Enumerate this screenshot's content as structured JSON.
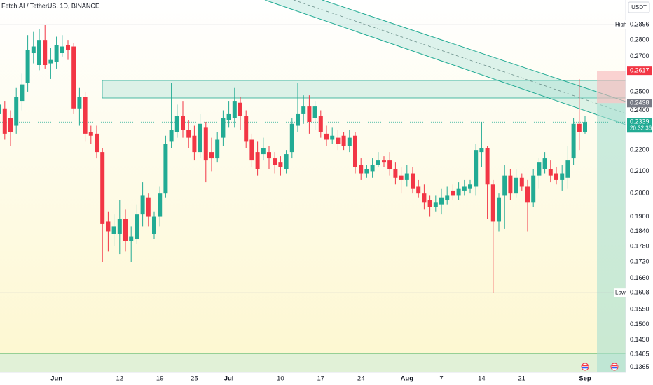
{
  "chart_data": {
    "type": "candlestick",
    "title": "Fetch.AI / TetherUS, 1D, BINANCE",
    "currency": "USDT",
    "categories": [
      null,
      null,
      null,
      null,
      null,
      null,
      null,
      null,
      null,
      null,
      "Jun",
      null,
      null,
      null,
      null,
      null,
      null,
      null,
      null,
      null,
      null,
      "12",
      null,
      null,
      null,
      null,
      null,
      null,
      "19",
      null,
      null,
      null,
      null,
      null,
      "25",
      null,
      null,
      null,
      null,
      null,
      "Jul",
      null,
      null,
      null,
      null,
      null,
      null,
      null,
      null,
      "10",
      null,
      null,
      null,
      null,
      null,
      null,
      "17",
      null,
      null,
      null,
      null,
      null,
      null,
      "24",
      null,
      null,
      null,
      null,
      null,
      null,
      null,
      "Aug",
      null,
      null,
      null,
      null,
      null,
      "7",
      null,
      null,
      null,
      null,
      null,
      null,
      "14",
      null,
      null,
      null,
      null,
      null,
      null,
      "21",
      null,
      null,
      null,
      null,
      null,
      null,
      null,
      null,
      null,
      null,
      "Sep"
    ],
    "open": [
      0.238,
      0.241,
      0.236,
      0.232,
      0.245,
      0.255,
      0.272,
      0.265,
      0.28,
      0.266,
      0.267,
      0.272,
      0.277,
      0.276,
      0.241,
      0.247,
      0.229,
      0.228,
      0.219,
      0.188,
      0.183,
      0.183,
      0.189,
      0.18,
      0.181,
      0.191,
      0.198,
      0.183,
      0.19,
      0.2,
      0.224,
      0.229,
      0.237,
      0.23,
      0.227,
      0.219,
      0.231,
      0.219,
      0.216,
      0.226,
      0.235,
      0.236,
      0.244,
      0.237,
      0.225,
      0.219,
      0.218,
      0.219,
      0.216,
      0.214,
      0.211,
      0.219,
      0.232,
      0.238,
      0.242,
      0.236,
      0.237,
      0.228,
      0.225,
      0.226,
      0.227,
      0.222,
      0.227,
      0.213,
      0.209,
      0.21,
      0.213,
      0.215,
      0.215,
      0.211,
      0.208,
      0.206,
      0.209,
      0.203,
      0.2,
      0.197,
      0.194,
      0.195,
      0.197,
      0.201,
      0.199,
      0.201,
      0.202,
      0.203,
      0.219,
      0.221,
      0.204,
      0.188,
      0.199,
      0.208,
      0.2,
      0.207,
      0.203,
      0.196,
      0.208,
      0.211,
      0.211,
      0.209,
      0.206,
      0.207,
      0.216,
      0.233,
      0.229
    ],
    "high": [
      0.247,
      0.245,
      0.24,
      0.252,
      0.26,
      0.283,
      0.285,
      0.287,
      0.2896,
      0.275,
      0.282,
      0.283,
      0.28,
      0.278,
      0.252,
      0.25,
      0.232,
      0.232,
      0.221,
      0.192,
      0.191,
      0.197,
      0.193,
      0.186,
      0.195,
      0.205,
      0.2,
      0.192,
      0.203,
      0.227,
      0.255,
      0.243,
      0.245,
      0.235,
      0.232,
      0.238,
      0.234,
      0.226,
      0.229,
      0.24,
      0.245,
      0.252,
      0.247,
      0.24,
      0.228,
      0.224,
      0.226,
      0.222,
      0.219,
      0.217,
      0.22,
      0.236,
      0.255,
      0.248,
      0.248,
      0.245,
      0.24,
      0.232,
      0.231,
      0.23,
      0.229,
      0.23,
      0.229,
      0.216,
      0.213,
      0.216,
      0.219,
      0.217,
      0.219,
      0.214,
      0.212,
      0.213,
      0.212,
      0.206,
      0.204,
      0.199,
      0.199,
      0.202,
      0.203,
      0.204,
      0.205,
      0.206,
      0.206,
      0.223,
      0.234,
      0.222,
      0.206,
      0.2,
      0.213,
      0.211,
      0.211,
      0.209,
      0.206,
      0.211,
      0.216,
      0.219,
      0.215,
      0.212,
      0.213,
      0.222,
      0.236,
      0.257,
      0.237
    ],
    "low": [
      0.232,
      0.225,
      0.222,
      0.228,
      0.24,
      0.25,
      0.266,
      0.262,
      0.263,
      0.257,
      0.263,
      0.27,
      0.268,
      0.238,
      0.232,
      0.224,
      0.223,
      0.216,
      0.172,
      0.176,
      0.178,
      0.175,
      0.176,
      0.172,
      0.179,
      0.186,
      0.186,
      0.181,
      0.186,
      0.198,
      0.221,
      0.226,
      0.226,
      0.221,
      0.215,
      0.216,
      0.205,
      0.21,
      0.214,
      0.222,
      0.231,
      0.231,
      0.23,
      0.221,
      0.212,
      0.208,
      0.215,
      0.211,
      0.209,
      0.208,
      0.209,
      0.216,
      0.229,
      0.233,
      0.228,
      0.23,
      0.226,
      0.222,
      0.223,
      0.22,
      0.22,
      0.219,
      0.209,
      0.206,
      0.207,
      0.207,
      0.212,
      0.212,
      0.208,
      0.204,
      0.2,
      0.203,
      0.2,
      0.198,
      0.193,
      0.19,
      0.192,
      0.191,
      0.195,
      0.197,
      0.197,
      0.199,
      0.2,
      0.199,
      0.212,
      0.189,
      0.1608,
      0.184,
      0.185,
      0.197,
      0.198,
      0.201,
      0.184,
      0.194,
      0.202,
      0.209,
      0.205,
      0.204,
      0.201,
      0.202,
      0.213,
      0.22,
      0.228
    ],
    "close": [
      0.243,
      0.228,
      0.229,
      0.247,
      0.254,
      0.274,
      0.276,
      0.28,
      0.265,
      0.268,
      0.277,
      0.276,
      0.274,
      0.241,
      0.247,
      0.228,
      0.227,
      0.219,
      0.187,
      0.184,
      0.186,
      0.189,
      0.18,
      0.182,
      0.191,
      0.199,
      0.19,
      0.19,
      0.2,
      0.223,
      0.23,
      0.237,
      0.23,
      0.226,
      0.219,
      0.233,
      0.215,
      0.216,
      0.225,
      0.236,
      0.238,
      0.245,
      0.237,
      0.224,
      0.215,
      0.211,
      0.221,
      0.216,
      0.213,
      0.212,
      0.218,
      0.233,
      0.238,
      0.242,
      0.234,
      0.242,
      0.229,
      0.225,
      0.227,
      0.223,
      0.222,
      0.226,
      0.212,
      0.209,
      0.211,
      0.213,
      0.215,
      0.214,
      0.211,
      0.207,
      0.206,
      0.209,
      0.202,
      0.2,
      0.196,
      0.194,
      0.196,
      0.198,
      0.199,
      0.199,
      0.202,
      0.203,
      0.204,
      0.22,
      0.221,
      0.204,
      0.188,
      0.198,
      0.208,
      0.2,
      0.207,
      0.203,
      0.196,
      0.208,
      0.214,
      0.216,
      0.208,
      0.206,
      0.209,
      0.215,
      0.233,
      0.229,
      0.2339
    ],
    "up_color": "#22ab94",
    "down_color": "#f23645",
    "log_scale": true,
    "ylim": [
      0.135,
      0.3057
    ],
    "yticks": [
      {
        "value": 0.28,
        "label": "0.2800"
      },
      {
        "value": 0.27,
        "label": "0.2700"
      },
      {
        "value": 0.25,
        "label": "0.2500"
      },
      {
        "value": 0.24,
        "label": "0.2400"
      },
      {
        "value": 0.22,
        "label": "0.2200"
      },
      {
        "value": 0.21,
        "label": "0.2100"
      },
      {
        "value": 0.2,
        "label": "0.2000"
      },
      {
        "value": 0.19,
        "label": "0.1900"
      },
      {
        "value": 0.184,
        "label": "0.1840"
      },
      {
        "value": 0.178,
        "label": "0.1780"
      },
      {
        "value": 0.172,
        "label": "0.1720"
      },
      {
        "value": 0.166,
        "label": "0.1660"
      },
      {
        "value": 0.155,
        "label": "0.1550"
      },
      {
        "value": 0.15,
        "label": "0.1500"
      },
      {
        "value": 0.145,
        "label": "0.1450"
      },
      {
        "value": 0.1405,
        "label": "0.1405"
      },
      {
        "value": 0.1365,
        "label": "0.1365"
      }
    ],
    "high_marker": {
      "text": "High",
      "value": 0.2896,
      "label": "0.2896"
    },
    "low_marker": {
      "text": "Low",
      "value": 0.1608,
      "label": "0.1608"
    },
    "last_price": {
      "value": 0.2339,
      "label": "0.2339",
      "countdown": "20:32:36",
      "color": "#22ab94"
    },
    "position": {
      "stop": {
        "value": 0.2617,
        "label": "0.2617",
        "color": "#f23645"
      },
      "entry": {
        "value": 0.2438,
        "label": "0.2438",
        "color": "#787b86"
      }
    }
  }
}
